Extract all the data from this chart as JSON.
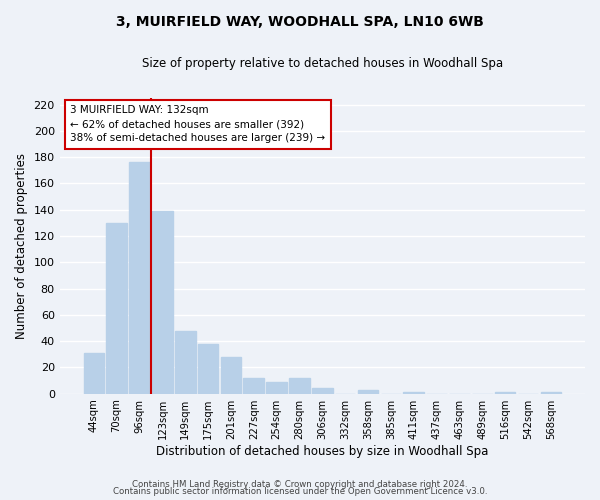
{
  "title": "3, MUIRFIELD WAY, WOODHALL SPA, LN10 6WB",
  "subtitle": "Size of property relative to detached houses in Woodhall Spa",
  "xlabel": "Distribution of detached houses by size in Woodhall Spa",
  "ylabel": "Number of detached properties",
  "bar_labels": [
    "44sqm",
    "70sqm",
    "96sqm",
    "123sqm",
    "149sqm",
    "175sqm",
    "201sqm",
    "227sqm",
    "254sqm",
    "280sqm",
    "306sqm",
    "332sqm",
    "358sqm",
    "385sqm",
    "411sqm",
    "437sqm",
    "463sqm",
    "489sqm",
    "516sqm",
    "542sqm",
    "568sqm"
  ],
  "bar_values": [
    31,
    130,
    176,
    139,
    48,
    38,
    28,
    12,
    9,
    12,
    4,
    0,
    3,
    0,
    1,
    0,
    0,
    0,
    1,
    0,
    1
  ],
  "bar_color": "#b8d0e8",
  "vline_index": 3,
  "vline_color": "#cc0000",
  "annotation_title": "3 MUIRFIELD WAY: 132sqm",
  "annotation_line1": "← 62% of detached houses are smaller (392)",
  "annotation_line2": "38% of semi-detached houses are larger (239) →",
  "annotation_box_facecolor": "#ffffff",
  "annotation_box_edgecolor": "#cc0000",
  "footer1": "Contains HM Land Registry data © Crown copyright and database right 2024.",
  "footer2": "Contains public sector information licensed under the Open Government Licence v3.0.",
  "ylim_max": 225,
  "yticks": [
    0,
    20,
    40,
    60,
    80,
    100,
    120,
    140,
    160,
    180,
    200,
    220
  ],
  "background_color": "#eef2f8",
  "grid_color": "#ffffff"
}
